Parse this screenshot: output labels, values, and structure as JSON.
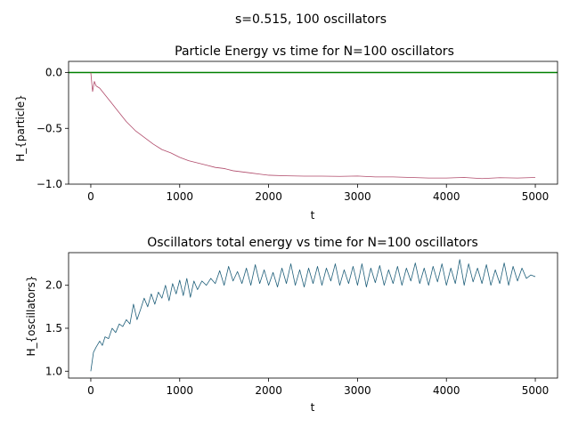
{
  "figure": {
    "suptitle": "s=0.515, 100 oscillators"
  },
  "chart_data": [
    {
      "type": "line",
      "title": "Particle Energy vs time for N=100 oscillators",
      "xlabel": "t",
      "ylabel": "H_{particle}",
      "xlim": [
        -250,
        5250
      ],
      "ylim": [
        -1.0,
        0.1
      ],
      "xticks": [
        0,
        1000,
        2000,
        3000,
        4000,
        5000
      ],
      "yticks": [
        -1.0,
        -0.5,
        0.0
      ],
      "ytick_labels": [
        "−1.0",
        "−0.5",
        "0.0"
      ],
      "grid": false,
      "reference_line": {
        "y": 0.0,
        "color": "#008000"
      },
      "series": [
        {
          "color": "#b04a6a",
          "x": [
            0,
            20,
            40,
            60,
            100,
            150,
            200,
            250,
            300,
            350,
            400,
            450,
            500,
            600,
            700,
            800,
            900,
            1000,
            1100,
            1200,
            1300,
            1400,
            1500,
            1600,
            1700,
            1800,
            1900,
            2000,
            2200,
            2400,
            2600,
            2800,
            3000,
            3200,
            3400,
            3600,
            3800,
            4000,
            4200,
            4400,
            4600,
            4800,
            5000
          ],
          "y": [
            0.0,
            -0.17,
            -0.08,
            -0.12,
            -0.14,
            -0.19,
            -0.24,
            -0.29,
            -0.34,
            -0.39,
            -0.44,
            -0.48,
            -0.52,
            -0.58,
            -0.64,
            -0.69,
            -0.72,
            -0.76,
            -0.79,
            -0.81,
            -0.83,
            -0.85,
            -0.86,
            -0.88,
            -0.89,
            -0.9,
            -0.91,
            -0.92,
            -0.925,
            -0.928,
            -0.928,
            -0.93,
            -0.927,
            -0.935,
            -0.935,
            -0.94,
            -0.945,
            -0.945,
            -0.94,
            -0.95,
            -0.942,
            -0.945,
            -0.94
          ]
        }
      ]
    },
    {
      "type": "line",
      "title": "Oscillators total energy vs time for N=100 oscillators",
      "xlabel": "t",
      "ylabel": "H_{oscillators}",
      "xlim": [
        -250,
        5250
      ],
      "ylim": [
        0.92,
        2.38
      ],
      "xticks": [
        0,
        1000,
        2000,
        3000,
        4000,
        5000
      ],
      "yticks": [
        1.0,
        1.5,
        2.0
      ],
      "grid": false,
      "series": [
        {
          "color": "#1f5f7a",
          "x": [
            0,
            30,
            60,
            100,
            130,
            160,
            200,
            240,
            280,
            320,
            360,
            400,
            440,
            480,
            520,
            560,
            600,
            640,
            680,
            720,
            760,
            800,
            840,
            880,
            920,
            960,
            1000,
            1040,
            1080,
            1120,
            1160,
            1200,
            1250,
            1300,
            1350,
            1400,
            1450,
            1500,
            1550,
            1600,
            1650,
            1700,
            1750,
            1800,
            1850,
            1900,
            1950,
            2000,
            2050,
            2100,
            2150,
            2200,
            2250,
            2300,
            2350,
            2400,
            2450,
            2500,
            2550,
            2600,
            2650,
            2700,
            2750,
            2800,
            2850,
            2900,
            2950,
            3000,
            3050,
            3100,
            3150,
            3200,
            3250,
            3300,
            3350,
            3400,
            3450,
            3500,
            3550,
            3600,
            3650,
            3700,
            3750,
            3800,
            3850,
            3900,
            3950,
            4000,
            4050,
            4100,
            4150,
            4200,
            4250,
            4300,
            4350,
            4400,
            4450,
            4500,
            4550,
            4600,
            4650,
            4700,
            4750,
            4800,
            4850,
            4900,
            4950,
            5000
          ],
          "y": [
            1.0,
            1.22,
            1.28,
            1.35,
            1.3,
            1.4,
            1.38,
            1.5,
            1.45,
            1.55,
            1.52,
            1.6,
            1.55,
            1.78,
            1.6,
            1.72,
            1.85,
            1.75,
            1.9,
            1.78,
            1.92,
            1.85,
            2.0,
            1.82,
            2.02,
            1.9,
            2.06,
            1.88,
            2.08,
            1.86,
            2.05,
            1.95,
            2.05,
            2.0,
            2.08,
            2.02,
            2.17,
            2.0,
            2.22,
            2.05,
            2.16,
            2.02,
            2.2,
            2.0,
            2.24,
            2.02,
            2.18,
            2.0,
            2.15,
            1.98,
            2.2,
            2.02,
            2.25,
            2.0,
            2.18,
            1.98,
            2.2,
            2.02,
            2.22,
            2.0,
            2.2,
            2.05,
            2.25,
            2.0,
            2.18,
            2.02,
            2.22,
            2.0,
            2.25,
            1.98,
            2.2,
            2.03,
            2.23,
            2.0,
            2.18,
            2.02,
            2.22,
            2.0,
            2.2,
            2.05,
            2.26,
            2.02,
            2.2,
            2.0,
            2.22,
            2.04,
            2.25,
            2.0,
            2.2,
            2.02,
            2.3,
            2.0,
            2.25,
            2.04,
            2.2,
            2.02,
            2.24,
            2.0,
            2.18,
            2.02,
            2.26,
            2.0,
            2.22,
            2.05,
            2.2,
            2.08,
            2.12,
            2.1
          ]
        }
      ]
    }
  ]
}
